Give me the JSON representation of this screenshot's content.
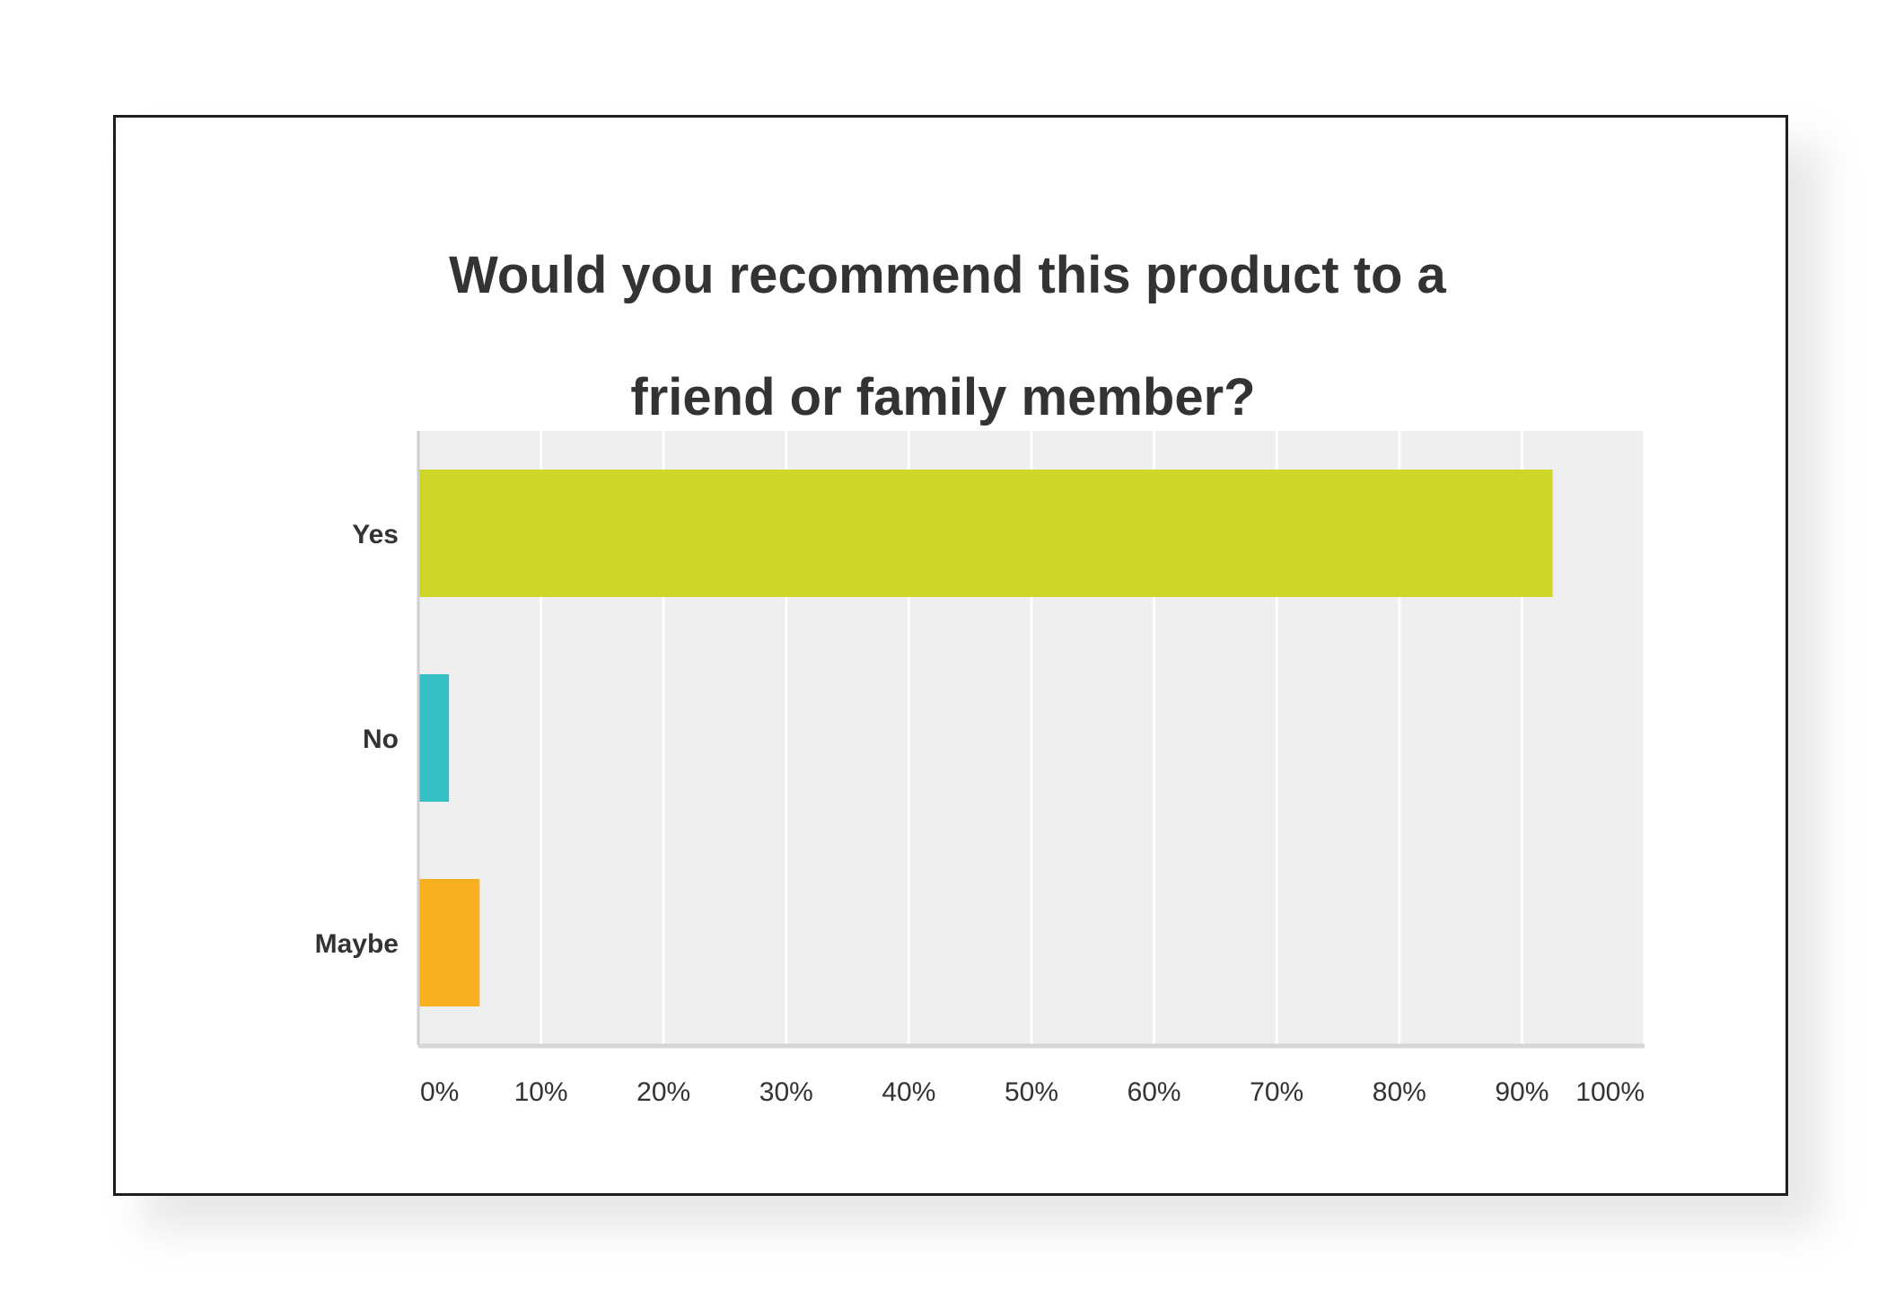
{
  "chart_data": {
    "type": "bar",
    "orientation": "horizontal",
    "title": "Would you recommend this product to a friend or family member?",
    "title_lines": [
      "Would you recommend this product to a",
      "friend or family member?"
    ],
    "categories": [
      "Yes",
      "No",
      "Maybe"
    ],
    "values": [
      92.5,
      2.5,
      5
    ],
    "colors": [
      "#CFD62A",
      "#35BEC3",
      "#F7B020"
    ],
    "xlim": [
      0,
      100
    ],
    "xticks": [
      0,
      10,
      20,
      30,
      40,
      50,
      60,
      70,
      80,
      90,
      100
    ],
    "xtick_labels": [
      "0%",
      "10%",
      "20%",
      "30%",
      "40%",
      "50%",
      "60%",
      "70%",
      "80%",
      "90%",
      "100%"
    ],
    "xlabel": "",
    "ylabel": "",
    "grid": true,
    "legend": "none",
    "plot_background": "#EFEFEF"
  }
}
